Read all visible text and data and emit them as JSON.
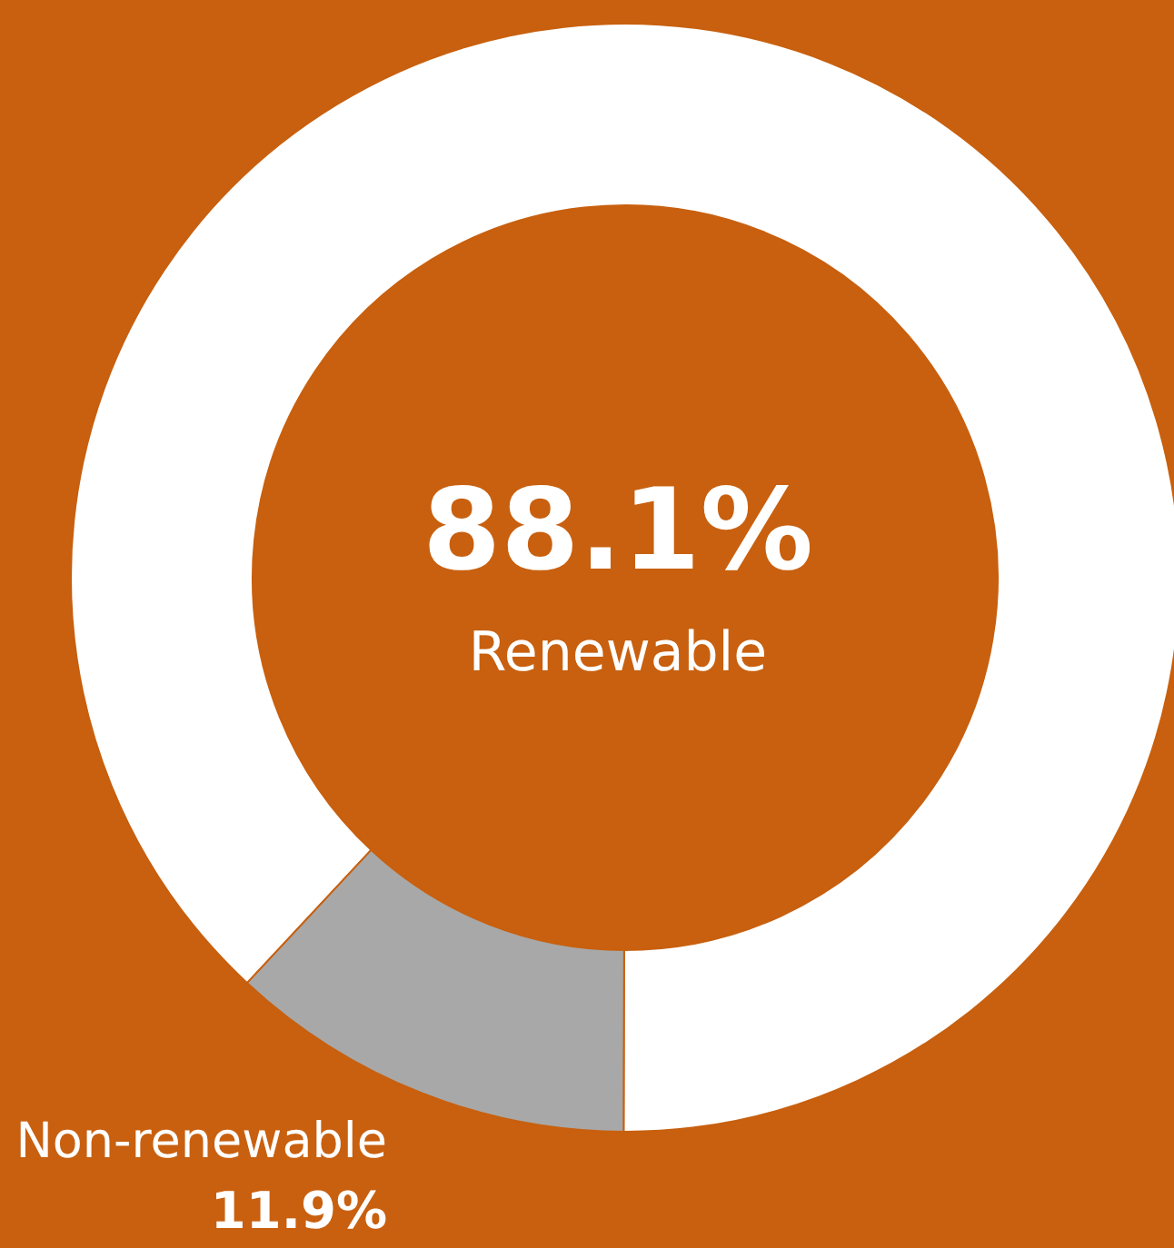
{
  "chart_data": {
    "type": "donut",
    "categories": [
      "Renewable",
      "Non-renewable"
    ],
    "values": [
      88.1,
      11.9
    ],
    "colors": [
      "#ffffff",
      "#a8a8a8"
    ],
    "value_labels": [
      "88.1%",
      "11.9%"
    ]
  }
}
